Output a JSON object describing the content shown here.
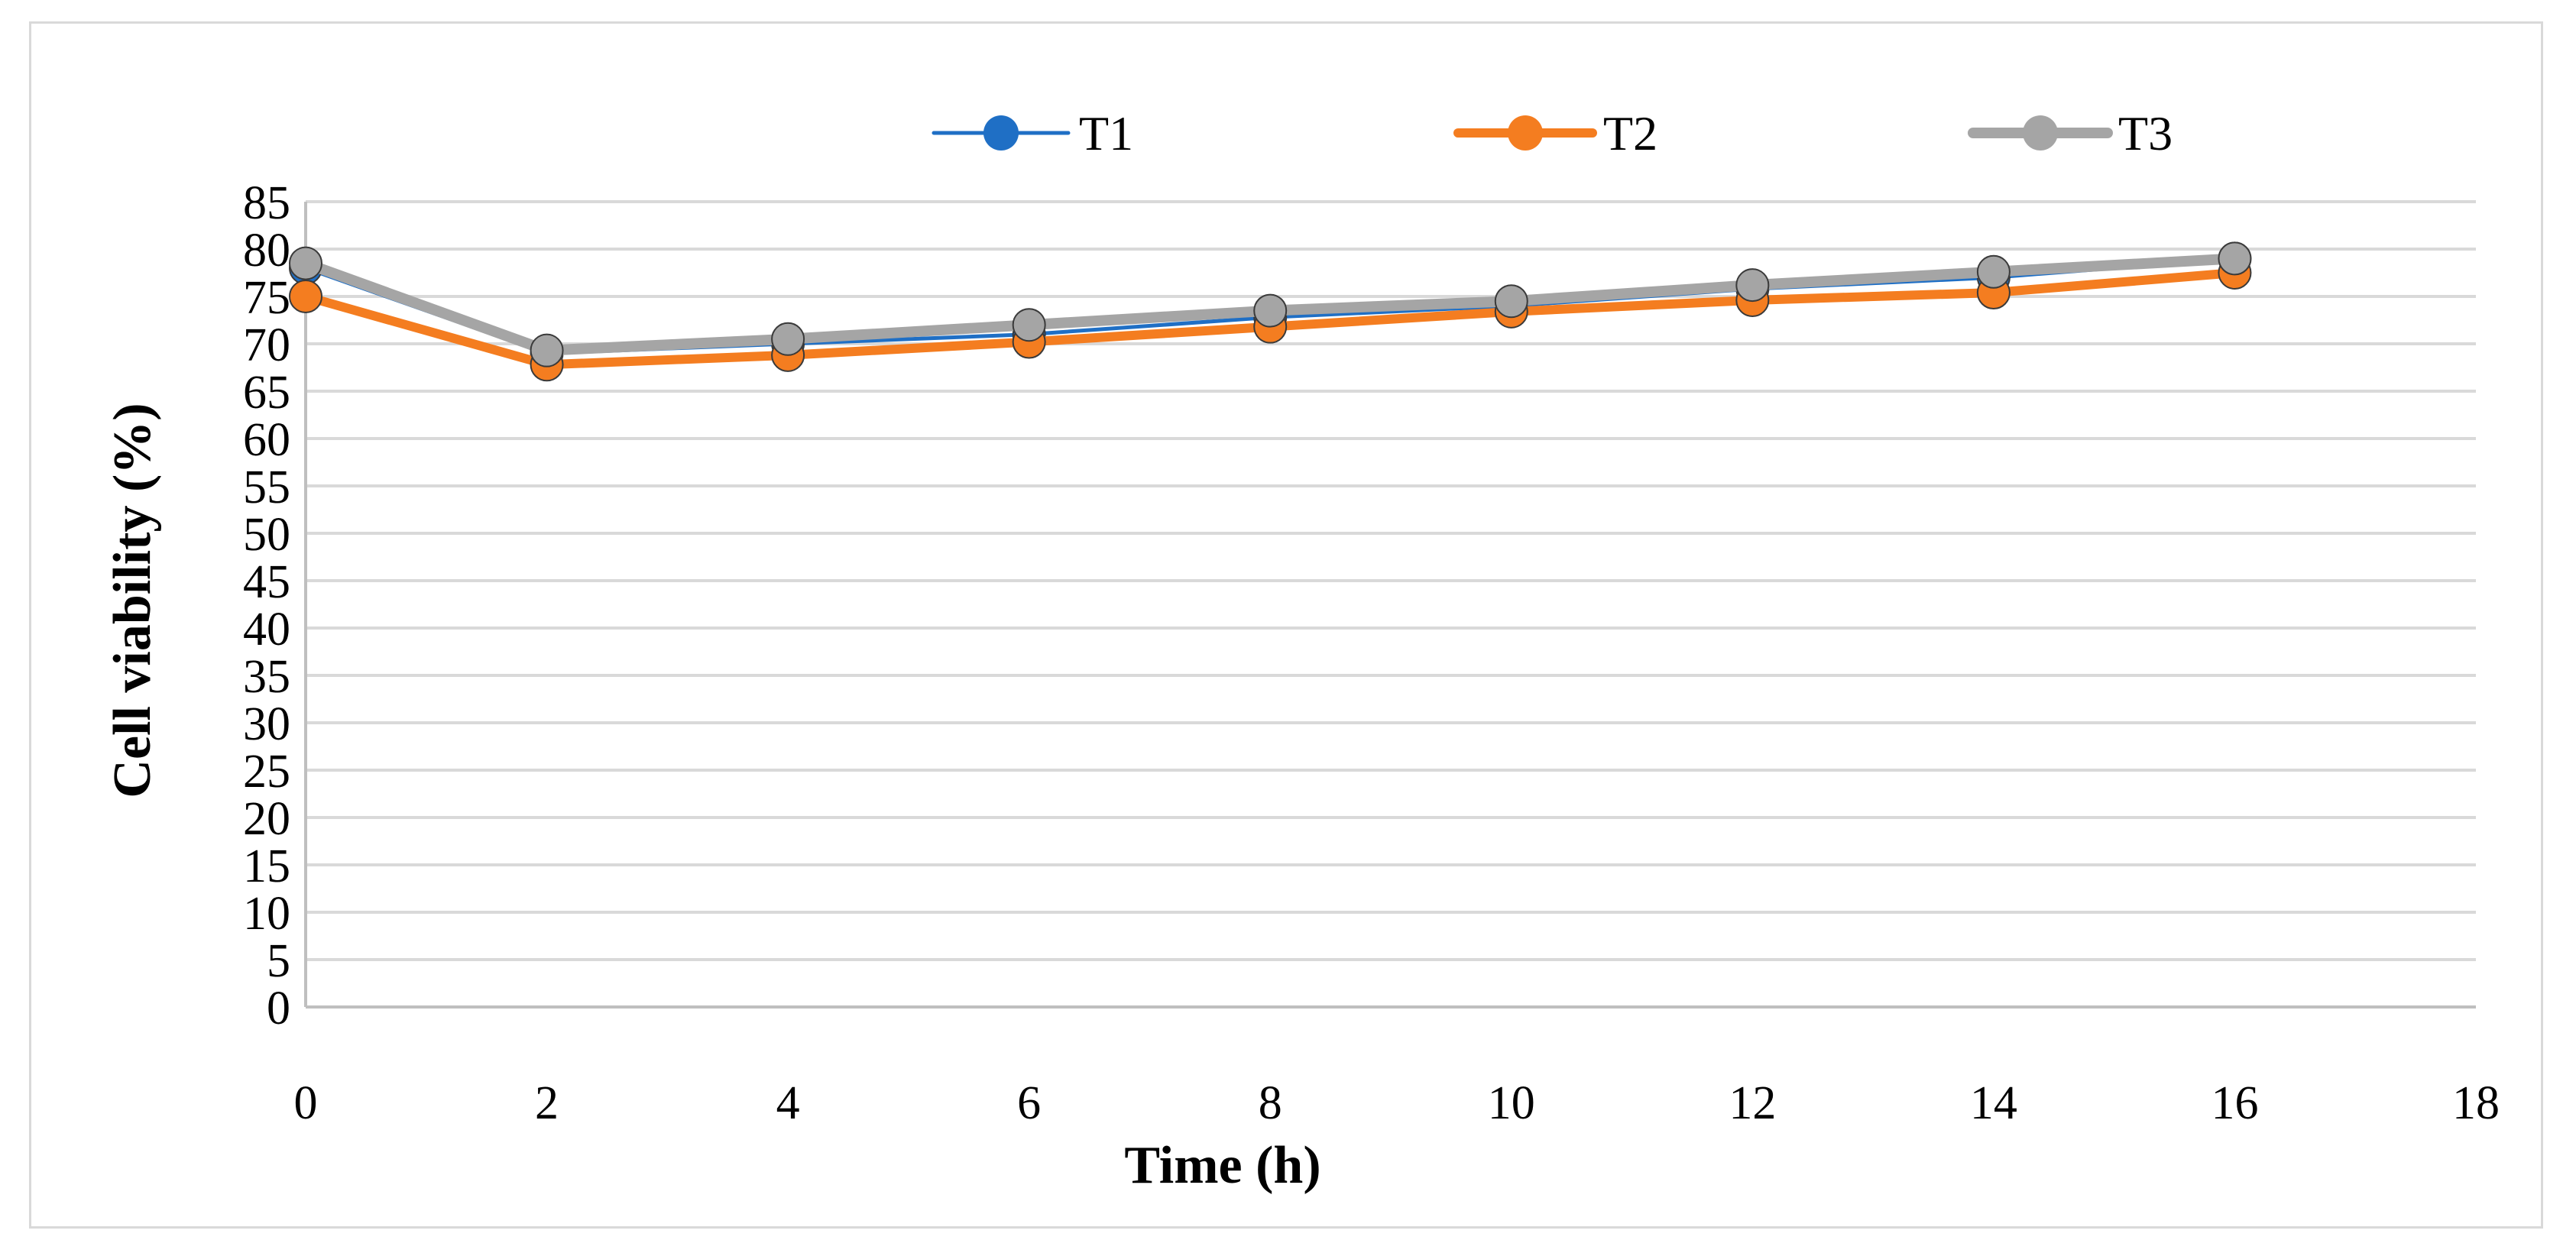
{
  "chart_data": {
    "type": "line",
    "title": "",
    "xlabel": "Time (h)",
    "ylabel": "Cell viability (%)",
    "xlim": [
      0,
      18
    ],
    "ylim": [
      0,
      85
    ],
    "x_ticks": [
      "0",
      "2",
      "4",
      "6",
      "8",
      "10",
      "12",
      "14",
      "16",
      "18"
    ],
    "y_ticks": [
      "0",
      "5",
      "10",
      "15",
      "20",
      "25",
      "30",
      "35",
      "40",
      "45",
      "50",
      "55",
      "60",
      "65",
      "70",
      "75",
      "80",
      "85"
    ],
    "grid": "horizontal",
    "legend_position": "top-center",
    "x": [
      0,
      2,
      4,
      6,
      8,
      10,
      12,
      14,
      16
    ],
    "series": [
      {
        "name": "T1",
        "color": "#1f6fc5",
        "values": [
          78.0,
          69.0,
          70.0,
          71.0,
          72.8,
          74.0,
          75.8,
          77.0,
          79.0
        ]
      },
      {
        "name": "T2",
        "color": "#f47d20",
        "values": [
          75.0,
          67.8,
          68.8,
          70.2,
          71.8,
          73.4,
          74.6,
          75.4,
          77.5
        ]
      },
      {
        "name": "T3",
        "color": "#a5a5a5",
        "values": [
          78.5,
          69.3,
          70.5,
          72.0,
          73.5,
          74.5,
          76.2,
          77.6,
          79.0
        ]
      }
    ]
  }
}
